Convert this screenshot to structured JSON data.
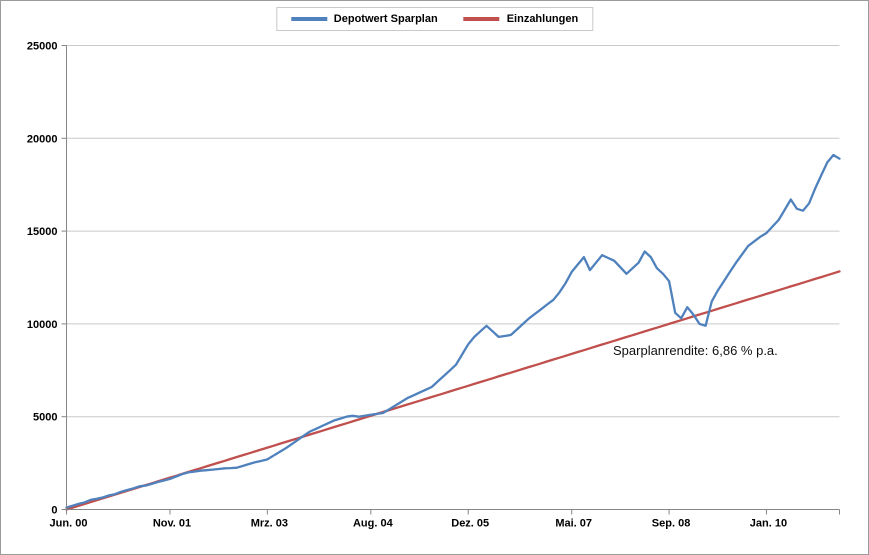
{
  "chart_data": {
    "type": "line",
    "title": "",
    "xlabel": "",
    "ylabel": "",
    "ylim": [
      0,
      25000
    ],
    "y_ticks": [
      0,
      5000,
      10000,
      15000,
      20000,
      25000
    ],
    "grid": true,
    "legend_position": "top-center",
    "x_tick_labels": [
      {
        "index": 0,
        "label": "Jun. 00"
      },
      {
        "index": 17,
        "label": "Nov. 01"
      },
      {
        "index": 33,
        "label": "Mrz. 03"
      },
      {
        "index": 50,
        "label": "Aug. 04"
      },
      {
        "index": 66,
        "label": "Dez. 05"
      },
      {
        "index": 83,
        "label": "Mai. 07"
      },
      {
        "index": 99,
        "label": "Sep. 08"
      },
      {
        "index": 115,
        "label": "Jan. 10"
      }
    ],
    "annotation": {
      "text": "Sparplanrendite: 6,86 % p.a."
    },
    "series": [
      {
        "name": "Depotwert Sparplan",
        "color": "#4f81bd",
        "values": [
          100,
          205,
          300,
          390,
          520,
          580,
          650,
          760,
          830,
          960,
          1050,
          1140,
          1250,
          1290,
          1380,
          1480,
          1560,
          1650,
          1780,
          1900,
          2000,
          2040,
          2090,
          2120,
          2150,
          2180,
          2220,
          2230,
          2250,
          2350,
          2450,
          2550,
          2620,
          2700,
          2900,
          3100,
          3300,
          3520,
          3750,
          3980,
          4200,
          4350,
          4500,
          4650,
          4800,
          4900,
          5000,
          5050,
          5000,
          5050,
          5100,
          5150,
          5200,
          5400,
          5600,
          5800,
          6000,
          6150,
          6300,
          6450,
          6600,
          6900,
          7200,
          7500,
          7800,
          8350,
          8900,
          9300,
          9600,
          9900,
          9600,
          9300,
          9350,
          9400,
          9700,
          10000,
          10300,
          10550,
          10800,
          11050,
          11300,
          11700,
          12200,
          12800,
          13200,
          13600,
          12900,
          13300,
          13700,
          13550,
          13400,
          13050,
          12700,
          13000,
          13300,
          13900,
          13600,
          13000,
          12700,
          12300,
          10600,
          10300,
          10900,
          10500,
          10000,
          9900,
          11200,
          11800,
          12300,
          12800,
          13300,
          13750,
          14200,
          14450,
          14700,
          14900,
          15250,
          15600,
          16150,
          16700,
          16200,
          16100,
          16500,
          17300,
          18000,
          18700,
          19100,
          18900
        ]
      },
      {
        "name": "Einzahlungen",
        "color": "#c0504d",
        "values": [
          0,
          101,
          202,
          303,
          404,
          505,
          606,
          707,
          808,
          909,
          1010,
          1111,
          1212,
          1313,
          1414,
          1515,
          1616,
          1717,
          1818,
          1919,
          2020,
          2121,
          2222,
          2323,
          2424,
          2525,
          2626,
          2727,
          2828,
          2929,
          3030,
          3131,
          3232,
          3333,
          3434,
          3535,
          3636,
          3737,
          3838,
          3939,
          4040,
          4141,
          4242,
          4343,
          4444,
          4545,
          4646,
          4747,
          4848,
          4949,
          5050,
          5151,
          5252,
          5353,
          5454,
          5555,
          5656,
          5757,
          5858,
          5959,
          6060,
          6161,
          6262,
          6363,
          6464,
          6565,
          6666,
          6767,
          6868,
          6969,
          7070,
          7171,
          7272,
          7373,
          7474,
          7575,
          7676,
          7777,
          7878,
          7979,
          8080,
          8181,
          8282,
          8383,
          8484,
          8585,
          8686,
          8787,
          8888,
          8989,
          9090,
          9191,
          9292,
          9393,
          9494,
          9595,
          9696,
          9797,
          9898,
          9999,
          10100,
          10201,
          10302,
          10403,
          10504,
          10605,
          10706,
          10807,
          10908,
          11009,
          11110,
          11211,
          11312,
          11413,
          11514,
          11615,
          11716,
          11817,
          11918,
          12019,
          12120,
          12221,
          12322,
          12423,
          12524,
          12625,
          12726,
          12827
        ]
      }
    ],
    "colors": {
      "gridline": "#c9c9c9",
      "axis": "#868686",
      "tick_label": "#000000"
    }
  }
}
